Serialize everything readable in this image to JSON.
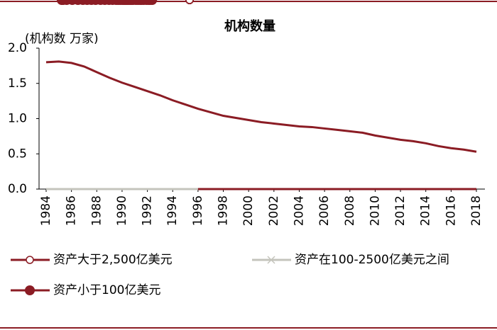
{
  "chart_data": {
    "type": "line",
    "title": "机构数量",
    "y_label": "(机构数 万家)",
    "x": [
      1984,
      1985,
      1986,
      1987,
      1988,
      1989,
      1990,
      1991,
      1992,
      1993,
      1994,
      1995,
      1996,
      1997,
      1998,
      1999,
      2000,
      2001,
      2002,
      2003,
      2004,
      2005,
      2006,
      2007,
      2008,
      2009,
      2010,
      2011,
      2012,
      2013,
      2014,
      2015,
      2016,
      2017,
      2018
    ],
    "xlim": [
      1984,
      2018
    ],
    "xticks": [
      1984,
      1986,
      1988,
      1990,
      1992,
      1994,
      1996,
      1998,
      2000,
      2002,
      2004,
      2006,
      2008,
      2010,
      2012,
      2014,
      2016,
      2018
    ],
    "ylim": [
      0,
      2
    ],
    "yticks": [
      {
        "value": 0,
        "label": "0.0"
      },
      0.5,
      {
        "value": 1,
        "label": "1.0"
      },
      1.5,
      {
        "value": 2,
        "label": "2.0"
      }
    ],
    "series": [
      {
        "name": "资产大于2,500亿美元",
        "color": "#8b1c24",
        "marker": "open-circle",
        "values": [
          null,
          null,
          null,
          null,
          null,
          null,
          null,
          null,
          null,
          null,
          null,
          null,
          0,
          0,
          0,
          0,
          0,
          0,
          0,
          0,
          0,
          0,
          0,
          0,
          0,
          0,
          0,
          0,
          0,
          0,
          0,
          0,
          0,
          0,
          0
        ]
      },
      {
        "name": "资产在100-2500亿美元之间",
        "color": "#c4c4bc",
        "marker": "x",
        "values": [
          0,
          0,
          0,
          0,
          0,
          0,
          0,
          0,
          0,
          0,
          0,
          0,
          0,
          0,
          0,
          0,
          0,
          0,
          0,
          0,
          0,
          0,
          0,
          0,
          0,
          0,
          0,
          0,
          0,
          0,
          0,
          0,
          0,
          0,
          0
        ]
      },
      {
        "name": "资产小于100亿美元",
        "color": "#8b1c24",
        "marker": "circle",
        "values": [
          1.8,
          1.81,
          1.79,
          1.74,
          1.66,
          1.58,
          1.51,
          1.45,
          1.39,
          1.33,
          1.26,
          1.2,
          1.14,
          1.09,
          1.04,
          1.01,
          0.98,
          0.95,
          0.93,
          0.91,
          0.89,
          0.88,
          0.86,
          0.84,
          0.82,
          0.8,
          0.76,
          0.73,
          0.7,
          0.68,
          0.65,
          0.61,
          0.58,
          0.56,
          0.53
        ]
      }
    ]
  }
}
